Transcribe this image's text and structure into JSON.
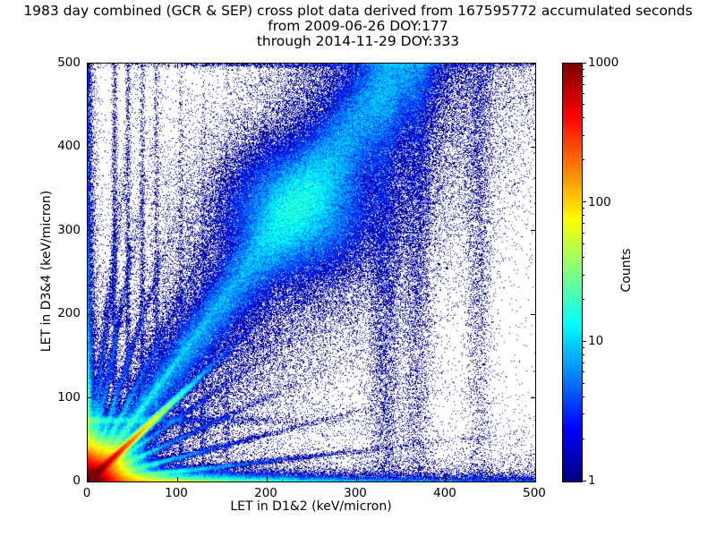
{
  "figure": {
    "title_line1": "1983 day combined (GCR & SEP) cross plot data derived from 167595772 accumulated seconds",
    "title_line2": "from 2009-06-26 DOY:177",
    "title_line3": "through 2014-11-29 DOY:333"
  },
  "chart_data": {
    "type": "heatmap",
    "title": "1983 day combined (GCR & SEP) cross plot data derived from 167595772 accumulated seconds from 2009-06-26 DOY:177 through 2014-11-29 DOY:333",
    "xlabel": "LET in D1&2 (keV/micron)",
    "ylabel": "LET in D3&4 (keV/micron)",
    "xlim": [
      0,
      500
    ],
    "ylim": [
      0,
      500
    ],
    "xticks": [
      0,
      100,
      200,
      300,
      400,
      500
    ],
    "yticks": [
      0,
      100,
      200,
      300,
      400,
      500
    ],
    "grid": false,
    "colormap": "jet",
    "legend": "none",
    "colorbar": {
      "label": "Counts",
      "scale": "log",
      "min": 1,
      "max": 1000,
      "ticks": [
        1,
        10,
        100,
        1000
      ],
      "position": "right"
    },
    "density_model": {
      "components": [
        {
          "kind": "radial_core",
          "cx": 0,
          "cy": 0,
          "amp": 2200,
          "scale": 13,
          "power": 1.1
        },
        {
          "kind": "ray",
          "slope": 1.0,
          "amp": 1500,
          "sigma": 2.2,
          "decay": 34
        },
        {
          "kind": "ray",
          "slope": 0.12,
          "amp": 55,
          "sigma": 1.8,
          "decay": 70
        },
        {
          "kind": "ray",
          "slope": 0.28,
          "amp": 45,
          "sigma": 1.8,
          "decay": 60
        },
        {
          "kind": "ray",
          "slope": 0.5,
          "amp": 38,
          "sigma": 1.8,
          "decay": 55
        },
        {
          "kind": "ray",
          "slope": 0.75,
          "amp": 32,
          "sigma": 1.8,
          "decay": 55
        },
        {
          "kind": "ray",
          "slope": 1.45,
          "amp": 30,
          "sigma": 2.0,
          "decay": 85
        },
        {
          "kind": "ray",
          "slope": 2.1,
          "amp": 32,
          "sigma": 2.0,
          "decay": 62
        },
        {
          "kind": "ray",
          "slope": 3.2,
          "amp": 26,
          "sigma": 2.0,
          "decay": 68
        },
        {
          "kind": "ray",
          "slope": 5.5,
          "amp": 20,
          "sigma": 2.2,
          "decay": 78
        },
        {
          "kind": "ray",
          "slope": 9.0,
          "amp": 16,
          "sigma": 2.5,
          "decay": 88
        },
        {
          "kind": "hstreak",
          "y0": 73,
          "amp": 15,
          "sigma": 2.5,
          "udecay": 60
        },
        {
          "kind": "diag_band",
          "slope": 1.42,
          "amp": 6,
          "sigma0": 9,
          "sigma_k": 0.1,
          "u_fade_start": 370,
          "u_fade_len": 35,
          "diffuse_amp": 1.0,
          "diffuse_mult": 3
        },
        {
          "kind": "blob",
          "cx": 235,
          "cy": 325,
          "amp": 9,
          "sigma": 40
        },
        {
          "kind": "hband",
          "amp_terms": [
            [
              250,
              70
            ],
            [
              15,
              260
            ]
          ],
          "amp_const": 2,
          "vdecay": 4
        },
        {
          "kind": "vband_left",
          "amp_terms": [
            [
              150,
              50
            ],
            [
              8,
              300
            ]
          ],
          "amp_const": 1.5,
          "udecay": 3
        },
        {
          "kind": "vstreak",
          "x0": 30,
          "amp": 2.6,
          "sigma": 1.6,
          "vdecay": 420
        },
        {
          "kind": "vstreak",
          "x0": 45,
          "amp": 2.2,
          "sigma": 1.6,
          "vdecay": 380
        },
        {
          "kind": "vstreak",
          "x0": 61,
          "amp": 1.9,
          "sigma": 1.7,
          "vdecay": 350
        },
        {
          "kind": "vstreak",
          "x0": 77,
          "amp": 1.7,
          "sigma": 1.7,
          "vdecay": 330
        },
        {
          "kind": "vstreak",
          "x0": 104,
          "amp": 1.2,
          "sigma": 1.8,
          "vdecay": 260
        },
        {
          "kind": "vstreak",
          "x0": 129,
          "amp": 1.0,
          "sigma": 1.8,
          "vdecay": 230
        },
        {
          "kind": "vstreak",
          "x0": 156,
          "amp": 0.8,
          "sigma": 1.8,
          "vdecay": 210
        },
        {
          "kind": "vband",
          "x0": 332,
          "sigma": 10,
          "amp_bottom": 0.3,
          "amp_top": 1.4
        },
        {
          "kind": "vband",
          "x0": 368,
          "sigma": 9,
          "amp_bottom": 0.25,
          "amp_top": 1.0
        },
        {
          "kind": "vband",
          "x0": 437,
          "sigma": 8,
          "amp_bottom": 0.15,
          "amp_top": 0.6
        },
        {
          "kind": "top_pileup",
          "vtop": 500,
          "sigma_v": 2.5,
          "amp": 2.2,
          "ucenter": 300,
          "usigma": 130
        },
        {
          "kind": "background",
          "base": 0.005,
          "diag_amp": 0.3,
          "diag_sigma": 150,
          "diag_slope": 1.42,
          "bottom_amp": 0.25,
          "bottom_vdecay": 35
        }
      ]
    }
  }
}
